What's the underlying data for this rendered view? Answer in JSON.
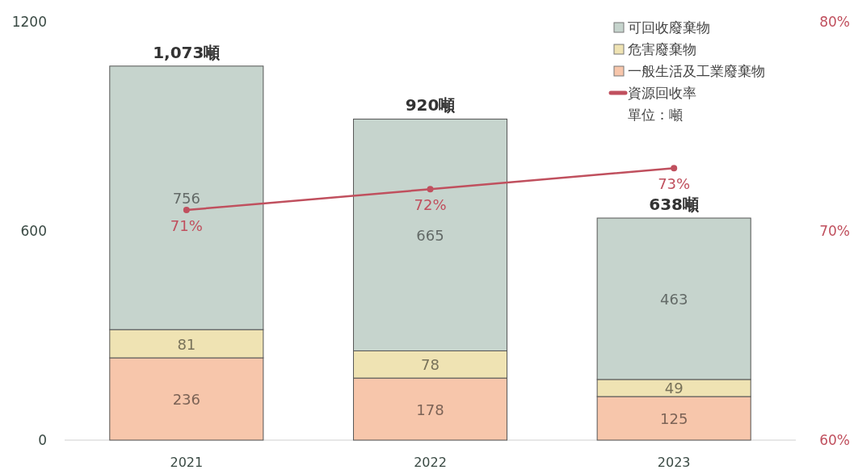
{
  "chart_data": {
    "type": "bar",
    "stacked": true,
    "categories": [
      "2021",
      "2022",
      "2023"
    ],
    "series": [
      {
        "name": "一般生活及工業廢棄物",
        "color": "#f7c6ab",
        "values": [
          236,
          178,
          125
        ],
        "value_labels": [
          "236",
          "178",
          "125"
        ]
      },
      {
        "name": "危害廢棄物",
        "color": "#efe3b3",
        "values": [
          81,
          78,
          49
        ],
        "value_labels": [
          "81",
          "78",
          "49"
        ]
      },
      {
        "name": "可回收廢棄物",
        "color": "#c6d4cd",
        "values": [
          756,
          665,
          463
        ],
        "value_labels": [
          "756",
          "665",
          "463"
        ]
      },
      {
        "name": "資源回收率",
        "type": "line",
        "axis": "y2",
        "color": "#c0505e",
        "marker": "circle",
        "values": [
          71,
          72,
          73
        ],
        "value_labels": [
          "71%",
          "72%",
          "73%"
        ]
      }
    ],
    "ylim": [
      0,
      1200
    ],
    "yticks": [
      0,
      600,
      1200
    ],
    "y2lim": [
      60,
      80
    ],
    "y2ticks": [
      {
        "value": 60,
        "label": "60%"
      },
      {
        "value": 70,
        "label": "70%"
      },
      {
        "value": 80,
        "label": "80%"
      }
    ],
    "totals": [
      "1,073噸",
      "920噸",
      "638噸"
    ],
    "legend": "top right",
    "annotations": [
      "單位：噸"
    ]
  }
}
